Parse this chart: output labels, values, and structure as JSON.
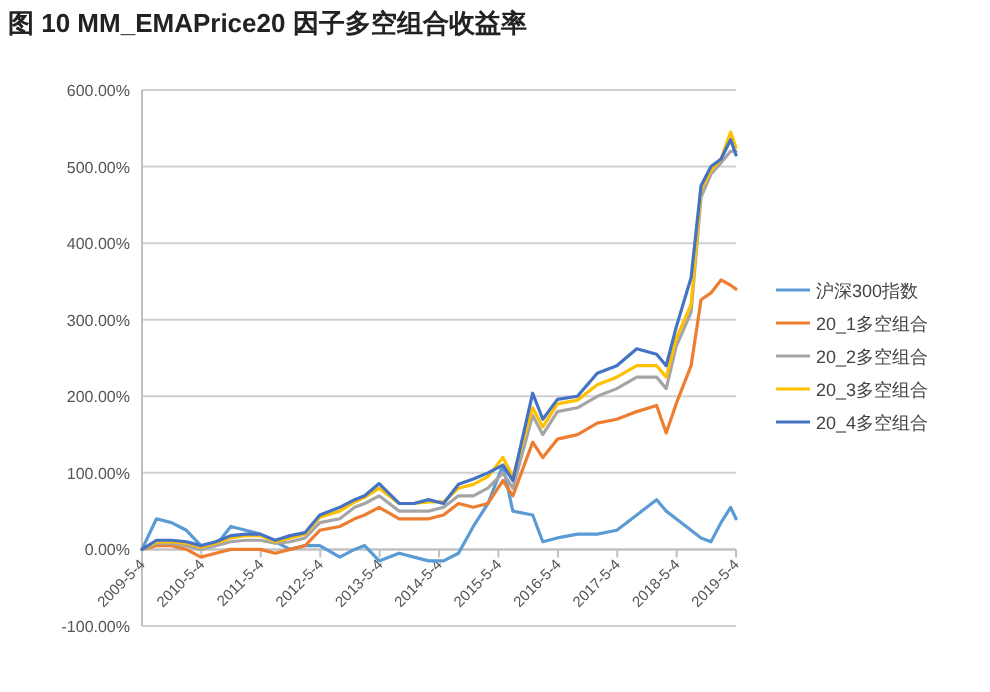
{
  "chart_data": {
    "type": "line",
    "title": "图 10 MM_EMAPrice20 因子多空组合收益率",
    "x": [
      "2009-05-04",
      "2009-08",
      "2009-11",
      "2010-02",
      "2010-05",
      "2010-08",
      "2010-11",
      "2011-02",
      "2011-05",
      "2011-08",
      "2011-11",
      "2012-02",
      "2012-05",
      "2012-09",
      "2012-12",
      "2013-02",
      "2013-05",
      "2013-09",
      "2013-12",
      "2014-03",
      "2014-06",
      "2014-09",
      "2014-12",
      "2015-03",
      "2015-06",
      "2015-08",
      "2015-12",
      "2016-02",
      "2016-05",
      "2016-09",
      "2017-01",
      "2017-05",
      "2017-09",
      "2018-01",
      "2018-03",
      "2018-05",
      "2018-08",
      "2018-10",
      "2018-12",
      "2019-02",
      "2019-04",
      "2019-05-04"
    ],
    "series": [
      {
        "name": "沪深300指数",
        "color": "#5b9bd5",
        "values": [
          0,
          40,
          35,
          25,
          5,
          5,
          30,
          25,
          20,
          10,
          0,
          5,
          5,
          -10,
          0,
          5,
          -15,
          -5,
          -10,
          -15,
          -15,
          -5,
          30,
          60,
          110,
          50,
          45,
          10,
          15,
          20,
          20,
          25,
          45,
          65,
          50,
          40,
          25,
          15,
          10,
          35,
          55,
          40
        ]
      },
      {
        "name": "20_1多空组合",
        "color": "#ed7d31",
        "values": [
          0,
          5,
          5,
          0,
          -10,
          -5,
          0,
          0,
          0,
          -5,
          0,
          5,
          25,
          30,
          40,
          45,
          55,
          40,
          40,
          40,
          45,
          60,
          55,
          60,
          90,
          70,
          140,
          120,
          144,
          150,
          165,
          170,
          180,
          188,
          152,
          190,
          240,
          326,
          335,
          352,
          345,
          340
        ]
      },
      {
        "name": "20_2多空组合",
        "color": "#a5a5a5",
        "values": [
          0,
          8,
          8,
          5,
          0,
          5,
          10,
          12,
          12,
          8,
          10,
          15,
          35,
          40,
          55,
          60,
          70,
          50,
          50,
          50,
          55,
          70,
          70,
          80,
          100,
          80,
          175,
          150,
          180,
          185,
          200,
          210,
          225,
          225,
          210,
          265,
          310,
          460,
          490,
          505,
          520,
          520
        ]
      },
      {
        "name": "20_3多空组合",
        "color": "#ffc000",
        "values": [
          0,
          10,
          10,
          8,
          3,
          8,
          15,
          18,
          18,
          10,
          15,
          20,
          42,
          50,
          62,
          68,
          80,
          60,
          60,
          62,
          62,
          80,
          85,
          95,
          120,
          95,
          185,
          160,
          190,
          195,
          215,
          225,
          240,
          240,
          225,
          275,
          320,
          470,
          495,
          510,
          545,
          525
        ]
      },
      {
        "name": "20_4多空组合",
        "color": "#4472c4",
        "values": [
          0,
          12,
          12,
          10,
          5,
          10,
          18,
          20,
          20,
          12,
          18,
          22,
          45,
          55,
          65,
          70,
          86,
          60,
          60,
          65,
          60,
          85,
          92,
          100,
          110,
          90,
          204,
          170,
          196,
          200,
          230,
          240,
          262,
          255,
          240,
          290,
          355,
          475,
          500,
          510,
          535,
          515
        ]
      }
    ],
    "xlim": [
      "2009-05-04",
      "2019-05-04"
    ],
    "xticks": [
      {
        "value": "2009-05-04",
        "label": "2009-5-4"
      },
      {
        "value": "2010-05-04",
        "label": "2010-5-4"
      },
      {
        "value": "2011-05-04",
        "label": "2011-5-4"
      },
      {
        "value": "2012-05-04",
        "label": "2012-5-4"
      },
      {
        "value": "2013-05-04",
        "label": "2013-5-4"
      },
      {
        "value": "2014-05-04",
        "label": "2014-5-4"
      },
      {
        "value": "2015-05-04",
        "label": "2015-5-4"
      },
      {
        "value": "2016-05-04",
        "label": "2016-5-4"
      },
      {
        "value": "2017-05-04",
        "label": "2017-5-4"
      },
      {
        "value": "2018-05-04",
        "label": "2018-5-4"
      },
      {
        "value": "2019-05-04",
        "label": "2019-5-4"
      }
    ],
    "ylim": [
      -100,
      600
    ],
    "yticks": [
      {
        "value": -100,
        "label": "-100.00%"
      },
      {
        "value": 0,
        "label": "0.00%"
      },
      {
        "value": 100,
        "label": "100.00%"
      },
      {
        "value": 200,
        "label": "200.00%"
      },
      {
        "value": 300,
        "label": "300.00%"
      },
      {
        "value": 400,
        "label": "400.00%"
      },
      {
        "value": 500,
        "label": "500.00%"
      },
      {
        "value": 600,
        "label": "600.00%"
      }
    ],
    "grid": "y",
    "legend": "right",
    "marker": "none",
    "line_style": "solid"
  }
}
